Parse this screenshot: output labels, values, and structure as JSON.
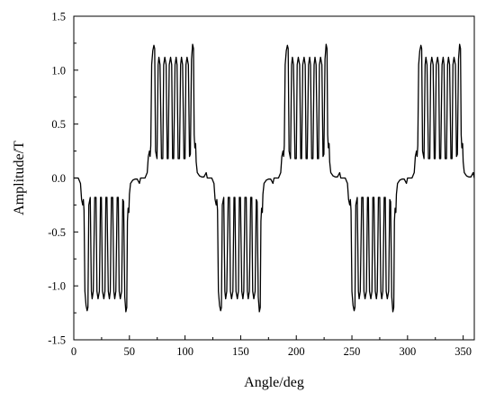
{
  "chart_data": {
    "type": "line",
    "xlabel": "Angle/deg",
    "ylabel": "Amplitude/T",
    "xlim": [
      0,
      360
    ],
    "ylim": [
      -1.5,
      1.5
    ],
    "xticks": [
      0,
      50,
      100,
      150,
      200,
      250,
      300,
      350
    ],
    "yticks": [
      -1.5,
      -1.0,
      -0.5,
      0.0,
      0.5,
      1.0,
      1.5
    ],
    "xtick_labels": [
      "0",
      "50",
      "100",
      "150",
      "200",
      "250",
      "300",
      "350"
    ],
    "ytick_labels": [
      "-1.5",
      "-1.0",
      "-0.5",
      "0.0",
      "0.5",
      "1.0",
      "1.5"
    ],
    "grid": false,
    "line_color": "#000000",
    "series": [
      {
        "x": [
          0,
          4,
          6,
          7,
          8,
          8.6,
          9.2,
          10,
          11,
          12,
          12.7,
          13.5,
          14.8,
          15.8,
          16.5,
          17.5,
          18.8,
          20,
          20.8,
          21.8,
          23,
          24,
          24.8,
          25.8,
          27,
          28,
          28.8,
          29.8,
          31,
          32,
          32.8,
          33.8,
          35,
          36,
          36.8,
          37.8,
          39,
          40,
          40.8,
          41.8,
          43,
          44,
          44.8,
          45.8,
          46.8,
          47.6,
          48.2,
          48.8,
          49.5,
          50,
          51,
          53,
          55,
          57,
          59,
          60,
          64,
          66,
          67,
          68,
          68.6,
          69.2,
          70,
          71,
          72,
          72.7,
          73.5,
          74.8,
          75.8,
          76.5,
          77.5,
          78.8,
          80,
          80.8,
          81.8,
          83,
          84,
          84.8,
          85.8,
          87,
          88,
          88.8,
          89.8,
          91,
          92,
          92.8,
          93.8,
          95,
          96,
          96.8,
          97.8,
          99,
          100,
          100.8,
          101.8,
          103,
          104,
          104.8,
          105.8,
          106.8,
          107.6,
          108.2,
          108.8,
          109.5,
          110,
          111,
          113,
          115,
          117,
          119,
          120,
          124,
          126,
          127,
          128,
          128.6,
          129.2,
          130,
          131,
          132,
          132.7,
          133.5,
          134.8,
          135.8,
          136.5,
          137.5,
          138.8,
          140,
          140.8,
          141.8,
          143,
          144,
          144.8,
          145.8,
          147,
          148,
          148.8,
          149.8,
          151,
          152,
          152.8,
          153.8,
          155,
          156,
          156.8,
          157.8,
          159,
          160,
          160.8,
          161.8,
          163,
          164,
          164.8,
          165.8,
          166.8,
          167.6,
          168.2,
          168.8,
          169.5,
          170,
          171,
          173,
          175,
          177,
          179,
          180,
          184,
          186,
          187,
          188,
          188.6,
          189.2,
          190,
          191,
          192,
          192.7,
          193.5,
          194.8,
          195.8,
          196.5,
          197.5,
          198.8,
          200,
          200.8,
          201.8,
          203,
          204,
          204.8,
          205.8,
          207,
          208,
          208.8,
          209.8,
          211,
          212,
          212.8,
          213.8,
          215,
          216,
          216.8,
          217.8,
          219,
          220,
          220.8,
          221.8,
          223,
          224,
          224.8,
          225.8,
          226.8,
          227.6,
          228.2,
          228.8,
          229.5,
          230,
          231,
          233,
          235,
          237,
          239,
          240,
          244,
          246,
          247,
          248,
          248.6,
          249.2,
          250,
          251,
          252,
          252.7,
          253.5,
          254.8,
          255.8,
          256.5,
          257.5,
          258.8,
          260,
          260.8,
          261.8,
          263,
          264,
          264.8,
          265.8,
          267,
          268,
          268.8,
          269.8,
          271,
          272,
          272.8,
          273.8,
          275,
          276,
          276.8,
          277.8,
          279,
          280,
          280.8,
          281.8,
          283,
          284,
          284.8,
          285.8,
          286.8,
          287.6,
          288.2,
          288.8,
          289.5,
          290,
          291,
          293,
          295,
          297,
          299,
          300,
          304,
          306,
          307,
          308,
          308.6,
          309.2,
          310,
          311,
          312,
          312.7,
          313.5,
          314.8,
          315.8,
          316.5,
          317.5,
          318.8,
          320,
          320.8,
          321.8,
          323,
          324,
          324.8,
          325.8,
          327,
          328,
          328.8,
          329.8,
          331,
          332,
          332.8,
          333.8,
          335,
          336,
          336.8,
          337.8,
          339,
          340,
          340.8,
          341.8,
          343,
          344,
          344.8,
          345.8,
          346.8,
          347.6,
          348.2,
          348.8,
          349.5,
          350,
          351,
          353,
          355,
          357,
          359,
          360
        ],
        "y": [
          0,
          0,
          -0.05,
          -0.2,
          -0.25,
          -0.2,
          -0.3,
          -1.05,
          -1.18,
          -1.23,
          -1.2,
          -0.25,
          -0.18,
          -1.05,
          -1.12,
          -1.05,
          -0.18,
          -0.18,
          -1.05,
          -1.12,
          -1.05,
          -0.18,
          -0.18,
          -1.05,
          -1.12,
          -1.05,
          -0.18,
          -0.18,
          -1.05,
          -1.12,
          -1.05,
          -0.18,
          -0.18,
          -1.05,
          -1.12,
          -1.05,
          -0.18,
          -0.18,
          -1.05,
          -1.12,
          -1.05,
          -0.2,
          -0.22,
          -1.1,
          -1.24,
          -1.2,
          -0.4,
          -0.28,
          -0.32,
          -0.15,
          -0.05,
          -0.02,
          -0.01,
          -0.01,
          -0.05,
          0,
          0,
          0.05,
          0.2,
          0.25,
          0.2,
          0.3,
          1.05,
          1.18,
          1.23,
          1.2,
          0.25,
          0.18,
          1.05,
          1.12,
          1.05,
          0.18,
          0.18,
          1.05,
          1.12,
          1.05,
          0.18,
          0.18,
          1.05,
          1.12,
          1.05,
          0.18,
          0.18,
          1.05,
          1.12,
          1.05,
          0.18,
          0.18,
          1.05,
          1.12,
          1.05,
          0.18,
          0.18,
          1.05,
          1.12,
          1.05,
          0.2,
          0.22,
          1.1,
          1.24,
          1.2,
          0.4,
          0.28,
          0.32,
          0.15,
          0.05,
          0.02,
          0.01,
          0.01,
          0.05,
          0,
          0,
          -0.05,
          -0.2,
          -0.25,
          -0.2,
          -0.3,
          -1.05,
          -1.18,
          -1.23,
          -1.2,
          -0.25,
          -0.18,
          -1.05,
          -1.12,
          -1.05,
          -0.18,
          -0.18,
          -1.05,
          -1.12,
          -1.05,
          -0.18,
          -0.18,
          -1.05,
          -1.12,
          -1.05,
          -0.18,
          -0.18,
          -1.05,
          -1.12,
          -1.05,
          -0.18,
          -0.18,
          -1.05,
          -1.12,
          -1.05,
          -0.18,
          -0.18,
          -1.05,
          -1.12,
          -1.05,
          -0.2,
          -0.22,
          -1.1,
          -1.24,
          -1.2,
          -0.4,
          -0.28,
          -0.32,
          -0.15,
          -0.05,
          -0.02,
          -0.01,
          -0.01,
          -0.05,
          0,
          0,
          0.05,
          0.2,
          0.25,
          0.2,
          0.3,
          1.05,
          1.18,
          1.23,
          1.2,
          0.25,
          0.18,
          1.05,
          1.12,
          1.05,
          0.18,
          0.18,
          1.05,
          1.12,
          1.05,
          0.18,
          0.18,
          1.05,
          1.12,
          1.05,
          0.18,
          0.18,
          1.05,
          1.12,
          1.05,
          0.18,
          0.18,
          1.05,
          1.12,
          1.05,
          0.18,
          0.18,
          1.05,
          1.12,
          1.05,
          0.2,
          0.22,
          1.1,
          1.24,
          1.2,
          0.4,
          0.28,
          0.32,
          0.15,
          0.05,
          0.02,
          0.01,
          0.01,
          0.05,
          0,
          0,
          -0.05,
          -0.2,
          -0.25,
          -0.2,
          -0.3,
          -1.05,
          -1.18,
          -1.23,
          -1.2,
          -0.25,
          -0.18,
          -1.05,
          -1.12,
          -1.05,
          -0.18,
          -0.18,
          -1.05,
          -1.12,
          -1.05,
          -0.18,
          -0.18,
          -1.05,
          -1.12,
          -1.05,
          -0.18,
          -0.18,
          -1.05,
          -1.12,
          -1.05,
          -0.18,
          -0.18,
          -1.05,
          -1.12,
          -1.05,
          -0.18,
          -0.18,
          -1.05,
          -1.12,
          -1.05,
          -0.2,
          -0.22,
          -1.1,
          -1.24,
          -1.2,
          -0.4,
          -0.28,
          -0.32,
          -0.15,
          -0.05,
          -0.02,
          -0.01,
          -0.01,
          -0.05,
          0,
          0,
          0.05,
          0.2,
          0.25,
          0.2,
          0.3,
          1.05,
          1.18,
          1.23,
          1.2,
          0.25,
          0.18,
          1.05,
          1.12,
          1.05,
          0.18,
          0.18,
          1.05,
          1.12,
          1.05,
          0.18,
          0.18,
          1.05,
          1.12,
          1.05,
          0.18,
          0.18,
          1.05,
          1.12,
          1.05,
          0.18,
          0.18,
          1.05,
          1.12,
          1.05,
          0.18,
          0.18,
          1.05,
          1.12,
          1.05,
          0.2,
          0.22,
          1.1,
          1.24,
          1.2,
          0.4,
          0.28,
          0.32,
          0.15,
          0.05,
          0.02,
          0.01,
          0.01,
          0.05,
          0
        ]
      }
    ]
  }
}
